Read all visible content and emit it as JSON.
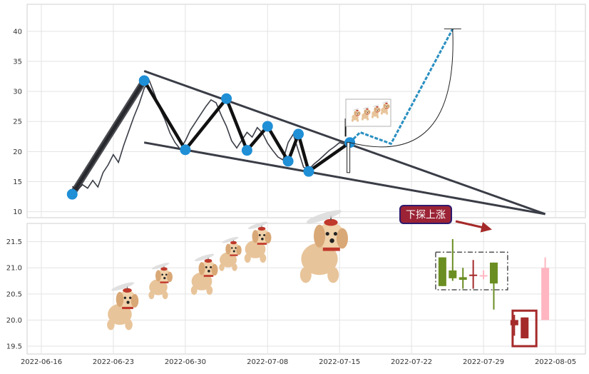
{
  "chart_data": [
    {
      "type": "line",
      "panel": "top",
      "title": "",
      "xlabel": "",
      "ylabel": "",
      "ylim": [
        9,
        44.5
      ],
      "y_ticks": [
        10,
        15,
        20,
        25,
        30,
        35,
        40
      ],
      "grid": true,
      "series": [
        {
          "style": "price",
          "points": [
            [
              "2022-06-19",
              14.2
            ],
            [
              "2022-06-19T12:00",
              13.6
            ],
            [
              "2022-06-20",
              14.5
            ],
            [
              "2022-06-20T12:00",
              13.9
            ],
            [
              "2022-06-21",
              15.2
            ],
            [
              "2022-06-21T12:00",
              14.1
            ],
            [
              "2022-06-22",
              16.5
            ],
            [
              "2022-06-22T12:00",
              17.8
            ],
            [
              "2022-06-23",
              19.5
            ],
            [
              "2022-06-23T12:00",
              18.2
            ],
            [
              "2022-06-24",
              21.0
            ],
            [
              "2022-06-24T12:00",
              23.4
            ],
            [
              "2022-06-25",
              25.8
            ],
            [
              "2022-06-25T12:00",
              27.9
            ],
            [
              "2022-06-26",
              30.5
            ],
            [
              "2022-06-26T12:00",
              31.8
            ],
            [
              "2022-06-27",
              29.6
            ],
            [
              "2022-06-27T12:00",
              27.2
            ],
            [
              "2022-06-28",
              25.4
            ],
            [
              "2022-06-28T12:00",
              23.1
            ],
            [
              "2022-06-29",
              21.5
            ],
            [
              "2022-06-29T12:00",
              20.4
            ],
            [
              "2022-06-30",
              21.8
            ],
            [
              "2022-06-30T12:00",
              23.6
            ],
            [
              "2022-07-01",
              24.9
            ],
            [
              "2022-07-01T12:00",
              26.2
            ],
            [
              "2022-07-02",
              27.5
            ],
            [
              "2022-07-02T12:00",
              28.6
            ],
            [
              "2022-07-03",
              28.1
            ],
            [
              "2022-07-03T12:00",
              26.0
            ],
            [
              "2022-07-04",
              24.2
            ],
            [
              "2022-07-04T12:00",
              21.8
            ],
            [
              "2022-07-05",
              20.6
            ],
            [
              "2022-07-05T12:00",
              21.9
            ],
            [
              "2022-07-06",
              23.2
            ],
            [
              "2022-07-06T12:00",
              22.4
            ],
            [
              "2022-07-07",
              24.0
            ],
            [
              "2022-07-07T12:00",
              23.1
            ],
            [
              "2022-07-08",
              21.4
            ],
            [
              "2022-07-08T12:00",
              20.2
            ],
            [
              "2022-07-09",
              19.1
            ],
            [
              "2022-07-09T12:00",
              18.6
            ],
            [
              "2022-07-10",
              21.5
            ],
            [
              "2022-07-10T12:00",
              22.9
            ],
            [
              "2022-07-11",
              20.1
            ],
            [
              "2022-07-11T12:00",
              17.4
            ],
            [
              "2022-07-12",
              17.0
            ],
            [
              "2022-07-12T12:00",
              17.9
            ],
            [
              "2022-07-13",
              18.6
            ],
            [
              "2022-07-13T12:00",
              19.4
            ],
            [
              "2022-07-14",
              20.2
            ],
            [
              "2022-07-14T12:00",
              20.8
            ],
            [
              "2022-07-15",
              21.5
            ],
            [
              "2022-07-15T12:00",
              21.2
            ],
            [
              "2022-07-16",
              21.7
            ]
          ]
        },
        {
          "style": "zigzag",
          "points": [
            [
              "2022-06-19",
              12.9
            ],
            [
              "2022-06-26",
              31.8
            ],
            [
              "2022-06-30",
              20.3
            ],
            [
              "2022-07-04",
              28.8
            ],
            [
              "2022-07-06",
              20.2
            ],
            [
              "2022-07-08",
              24.2
            ],
            [
              "2022-07-10",
              18.4
            ],
            [
              "2022-07-11",
              22.9
            ],
            [
              "2022-07-12",
              16.7
            ],
            [
              "2022-07-16",
              21.5
            ]
          ]
        },
        {
          "style": "trendline",
          "points": [
            [
              "2022-06-26",
              33.4
            ],
            [
              "2022-08-04",
              9.6
            ]
          ]
        },
        {
          "style": "trendline",
          "points": [
            [
              "2022-06-26",
              21.5
            ],
            [
              "2022-08-04",
              9.6
            ]
          ]
        },
        {
          "style": "projection",
          "points": [
            [
              "2022-07-16",
              21.5
            ],
            [
              "2022-07-17",
              23.2
            ],
            [
              "2022-07-20",
              21.3
            ],
            [
              "2022-07-26",
              40.4
            ]
          ]
        }
      ],
      "markers": [
        [
          "2022-06-19",
          12.9
        ],
        [
          "2022-06-26",
          31.8
        ],
        [
          "2022-06-30",
          20.3
        ],
        [
          "2022-07-04",
          28.8
        ],
        [
          "2022-07-06",
          20.2
        ],
        [
          "2022-07-08",
          24.2
        ],
        [
          "2022-07-10",
          18.4
        ],
        [
          "2022-07-11",
          22.9
        ],
        [
          "2022-07-12",
          16.7
        ],
        [
          "2022-07-16",
          21.5
        ]
      ],
      "target_level": 40.4
    },
    {
      "type": "candlestick",
      "panel": "bottom",
      "title": "",
      "xlabel": "",
      "ylabel": "",
      "ylim": [
        19.35,
        21.85
      ],
      "y_ticks": [
        19.5,
        20.0,
        20.5,
        21.0,
        21.5
      ],
      "x_ticks": [
        "2022-06-16",
        "2022-06-23",
        "2022-06-30",
        "2022-07-08",
        "2022-07-15",
        "2022-07-22",
        "2022-07-29",
        "2022-08-05"
      ],
      "grid": true,
      "candles": [
        {
          "date": "2022-07-25",
          "open": 21.2,
          "close": 20.65,
          "high": 21.2,
          "low": 20.65,
          "color": "#6b8e23"
        },
        {
          "date": "2022-07-26",
          "open": 20.95,
          "close": 20.8,
          "high": 21.55,
          "low": 20.75,
          "color": "#6b8e23"
        },
        {
          "date": "2022-07-27",
          "open": 20.82,
          "close": 20.77,
          "high": 21.0,
          "low": 20.6,
          "color": "#6b8e23"
        },
        {
          "date": "2022-07-28",
          "open": 20.87,
          "close": 20.87,
          "high": 21.15,
          "low": 20.6,
          "color": "#a52a2a"
        },
        {
          "date": "2022-07-29",
          "open": 20.86,
          "close": 20.86,
          "high": 20.95,
          "low": 20.78,
          "color": "#ffb6c1"
        },
        {
          "date": "2022-07-30",
          "open": 21.1,
          "close": 20.7,
          "high": 21.1,
          "low": 20.2,
          "color": "#6b8e23"
        },
        {
          "date": "2022-08-01",
          "open": 19.9,
          "close": 20.0,
          "high": 20.1,
          "low": 19.7,
          "color": "#a52a2a"
        },
        {
          "date": "2022-08-02",
          "open": 19.65,
          "close": 20.05,
          "high": 20.05,
          "low": 19.65,
          "color": "#a52a2a"
        },
        {
          "date": "2022-08-04",
          "open": 20.0,
          "close": 21.0,
          "high": 21.2,
          "low": 20.0,
          "color": "#ffb6c1"
        }
      ],
      "annotation": {
        "text": "下探上涨",
        "bg": "#9b2335",
        "border": "#2e1a6e"
      }
    }
  ],
  "colors": {
    "zigzag": "#111111",
    "marker": "#1f8fd6",
    "trendline": "#3a3d46",
    "price": "#3a3d46",
    "projection": "#2a8fc0",
    "arrow": "#a52a2a"
  },
  "decorations": [
    "puppy-with-propeller-hat-icon"
  ]
}
